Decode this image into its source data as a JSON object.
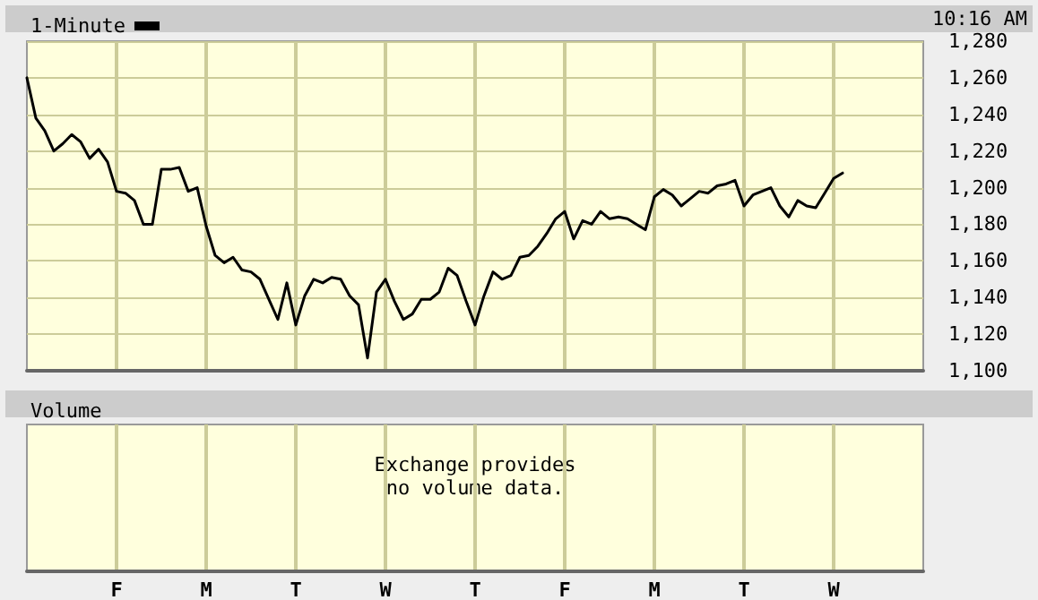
{
  "chart_data": [
    {
      "type": "line",
      "annotations": [
        "10:16 AM"
      ],
      "categories": [
        null,
        null,
        null,
        null,
        null,
        null,
        null,
        null,
        null,
        null,
        "F",
        null,
        null,
        null,
        null,
        null,
        null,
        null,
        null,
        null,
        "M",
        null,
        null,
        null,
        null,
        null,
        null,
        null,
        null,
        null,
        "T",
        null,
        null,
        null,
        null,
        null,
        null,
        null,
        null,
        null,
        "W",
        null,
        null,
        null,
        null,
        null,
        null,
        null,
        null,
        null,
        "T",
        null,
        null,
        null,
        null,
        null,
        null,
        null,
        null,
        null,
        "F",
        null,
        null,
        null,
        null,
        null,
        null,
        null,
        null,
        null,
        "M",
        null,
        null,
        null,
        null,
        null,
        null,
        null,
        null,
        null,
        "T",
        null,
        null,
        null,
        null,
        null,
        null,
        null,
        null,
        null,
        "W",
        null,
        null,
        null,
        null,
        null,
        null,
        null,
        null,
        null,
        null
      ],
      "series": [
        {
          "name": "1-Minute",
          "color": "#000000",
          "values": [
            1260,
            1238,
            1231,
            1220,
            1224,
            1229,
            1225,
            1216,
            1221,
            1214,
            1198,
            1197,
            1193,
            1180,
            1180,
            1210,
            1210,
            1211,
            1198,
            1200,
            1179,
            1163,
            1159,
            1162,
            1155,
            1154,
            1150,
            1139,
            1128,
            1148,
            1125,
            1141,
            1150,
            1148,
            1151,
            1150,
            1141,
            1136,
            1107,
            1143,
            1150,
            1138,
            1128,
            1131,
            1139,
            1139,
            1143,
            1156,
            1152,
            1138,
            1125,
            1141,
            1154,
            1150,
            1152,
            1162,
            1163,
            1168,
            1175,
            1183,
            1187,
            1172,
            1182,
            1180,
            1187,
            1183,
            1184,
            1183,
            1180,
            1177,
            1195,
            1199,
            1196,
            1190,
            1194,
            1198,
            1197,
            1201,
            1202,
            1204,
            1190,
            1196,
            1198,
            1200,
            1190,
            1184,
            1193,
            1190,
            1189,
            1197,
            1205,
            1208,
            null,
            null,
            null,
            null,
            null,
            null,
            null,
            null,
            null
          ]
        }
      ],
      "ylim": [
        1100,
        1280
      ],
      "yticks": [
        {
          "value": 1100,
          "label": "1,100"
        },
        {
          "value": 1120,
          "label": "1,120"
        },
        {
          "value": 1140,
          "label": "1,140"
        },
        {
          "value": 1160,
          "label": "1,160"
        },
        {
          "value": 1180,
          "label": "1,180"
        },
        {
          "value": 1200,
          "label": "1,200"
        },
        {
          "value": 1220,
          "label": "1,220"
        },
        {
          "value": 1240,
          "label": "1,240"
        },
        {
          "value": 1260,
          "label": "1,260"
        },
        {
          "value": 1280,
          "label": "1,280"
        }
      ],
      "grid": true,
      "legend": "top left",
      "line_style": "solid",
      "tick_labels": "y"
    },
    {
      "type": "other",
      "title": "Volume",
      "annotations": [
        "Exchange provides\nno volume data."
      ]
    }
  ]
}
